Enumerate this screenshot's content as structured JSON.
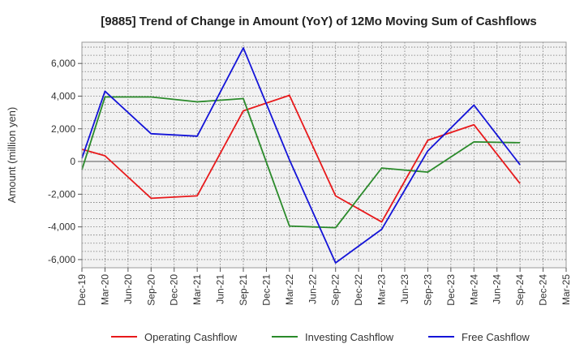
{
  "chart_data": {
    "type": "line",
    "title": "[9885]  Trend of Change in Amount (YoY) of 12Mo Moving Sum of Cashflows",
    "xlabel": "",
    "ylabel": "Amount (million yen)",
    "ylim": [
      -6500,
      7300
    ],
    "yticks": [
      -6000,
      -4000,
      -2000,
      0,
      2000,
      4000,
      6000
    ],
    "ytick_labels": [
      "-6,000",
      "-4,000",
      "-2,000",
      "0",
      "2,000",
      "4,000",
      "6,000"
    ],
    "categories": [
      "Dec-19",
      "Mar-20",
      "Jun-20",
      "Sep-20",
      "Dec-20",
      "Mar-21",
      "Jun-21",
      "Sep-21",
      "Dec-21",
      "Mar-22",
      "Jun-22",
      "Sep-22",
      "Dec-22",
      "Mar-23",
      "Jun-23",
      "Sep-23",
      "Dec-23",
      "Mar-24",
      "Jun-24",
      "Sep-24",
      "Dec-24",
      "Mar-25"
    ],
    "x_labels": [
      "Dec-19",
      "Mar-20",
      "Jun-20",
      "Sep-20",
      "Dec-20",
      "Mar-21",
      "Jun-21",
      "Sep-21",
      "Dec-21",
      "Mar-22",
      "Jun-22",
      "Sep-22",
      "Dec-22",
      "Mar-23",
      "Jun-23",
      "Sep-23",
      "Dec-23",
      "Mar-24",
      "Jun-24",
      "Sep-24",
      "Dec-24",
      "Mar-25"
    ],
    "grid": true,
    "legend_position": "bottom",
    "series": [
      {
        "name": "Operating Cashflow",
        "color": "#e8191b",
        "points": [
          {
            "x": "Dec-19",
            "y": 750
          },
          {
            "x": "Mar-20",
            "y": 350
          },
          {
            "x": "Sep-20",
            "y": -2250
          },
          {
            "x": "Mar-21",
            "y": -2100
          },
          {
            "x": "Sep-21",
            "y": 3100
          },
          {
            "x": "Mar-22",
            "y": 4050
          },
          {
            "x": "Sep-22",
            "y": -2100
          },
          {
            "x": "Mar-23",
            "y": -3700
          },
          {
            "x": "Sep-23",
            "y": 1300
          },
          {
            "x": "Mar-24",
            "y": 2250
          },
          {
            "x": "Sep-24",
            "y": -1350
          }
        ]
      },
      {
        "name": "Investing Cashflow",
        "color": "#2a8a2a",
        "points": [
          {
            "x": "Dec-19",
            "y": -500
          },
          {
            "x": "Mar-20",
            "y": 3950
          },
          {
            "x": "Sep-20",
            "y": 3950
          },
          {
            "x": "Mar-21",
            "y": 3650
          },
          {
            "x": "Sep-21",
            "y": 3850
          },
          {
            "x": "Mar-22",
            "y": -3950
          },
          {
            "x": "Sep-22",
            "y": -4050
          },
          {
            "x": "Mar-23",
            "y": -400
          },
          {
            "x": "Sep-23",
            "y": -650
          },
          {
            "x": "Mar-24",
            "y": 1200
          },
          {
            "x": "Sep-24",
            "y": 1150
          }
        ]
      },
      {
        "name": "Free Cashflow",
        "color": "#1414d8",
        "points": [
          {
            "x": "Dec-19",
            "y": 200
          },
          {
            "x": "Mar-20",
            "y": 4300
          },
          {
            "x": "Sep-20",
            "y": 1700
          },
          {
            "x": "Mar-21",
            "y": 1550
          },
          {
            "x": "Sep-21",
            "y": 6950
          },
          {
            "x": "Mar-22",
            "y": 100
          },
          {
            "x": "Sep-22",
            "y": -6200
          },
          {
            "x": "Mar-23",
            "y": -4150
          },
          {
            "x": "Sep-23",
            "y": 650
          },
          {
            "x": "Mar-24",
            "y": 3450
          },
          {
            "x": "Sep-24",
            "y": -200
          }
        ]
      }
    ]
  },
  "colors": {
    "plot_background": "#f2f2f2",
    "grid": "#777777",
    "frame": "#999999"
  }
}
